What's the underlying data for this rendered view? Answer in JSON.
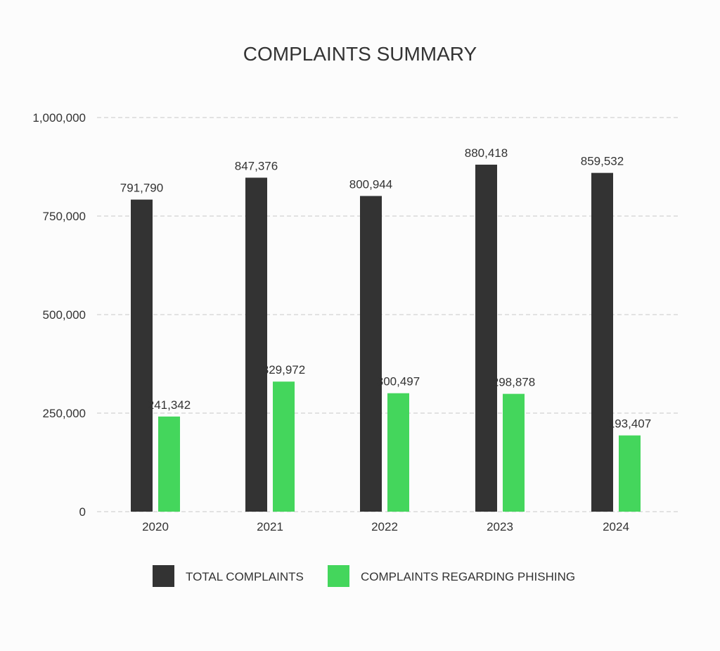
{
  "chart_data": {
    "type": "bar",
    "title": "COMPLAINTS SUMMARY",
    "xlabel": "",
    "ylabel": "",
    "categories": [
      "2020",
      "2021",
      "2022",
      "2023",
      "2024"
    ],
    "series": [
      {
        "name": "TOTAL COMPLAINTS",
        "color": "#333333",
        "values": [
          791790,
          847376,
          800944,
          880418,
          859532
        ],
        "labels": [
          "791,790",
          "847,376",
          "800,944",
          "880,418",
          "859,532"
        ]
      },
      {
        "name": "COMPLAINTS REGARDING PHISHING",
        "color": "#44d65c",
        "values": [
          241342,
          329972,
          300497,
          298878,
          193407
        ],
        "labels": [
          "241,342",
          "329,972",
          "300,497",
          "298,878",
          "193,407"
        ]
      }
    ],
    "ylim": [
      0,
      1000000
    ],
    "yticks": [
      0,
      250000,
      500000,
      750000,
      1000000
    ],
    "ytick_labels": [
      "0",
      "250,000",
      "500,000",
      "750,000",
      "1,000,000"
    ],
    "grid": true,
    "grid_style": "dashed",
    "legend_position": "bottom-center"
  }
}
